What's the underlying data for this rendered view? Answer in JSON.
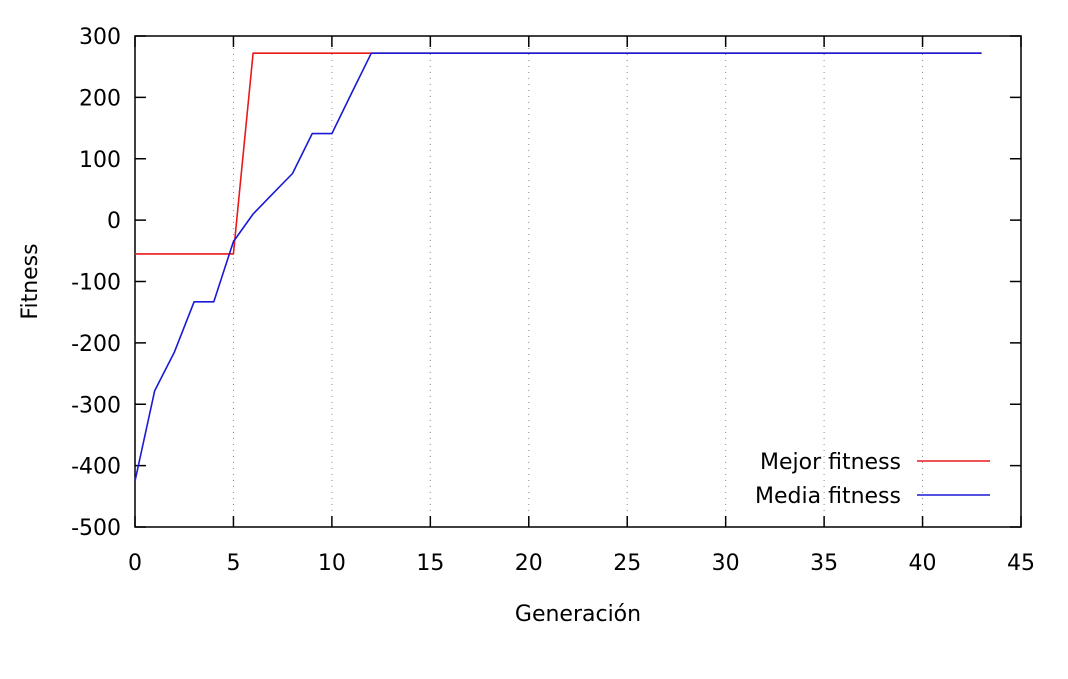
{
  "chart_data": {
    "type": "line",
    "title": "",
    "xlabel": "Generación",
    "ylabel": "Fitness",
    "xlim": [
      0,
      45
    ],
    "ylim": [
      -500,
      300
    ],
    "xticks": [
      0,
      5,
      10,
      15,
      20,
      25,
      30,
      35,
      40,
      45
    ],
    "yticks": [
      -500,
      -400,
      -300,
      -200,
      -100,
      0,
      100,
      200,
      300
    ],
    "grid": "vertical-dotted",
    "legend_position": "bottom-right",
    "series": [
      {
        "name": "Mejor fitness",
        "color": "#e8191b",
        "x": [
          0,
          5,
          6,
          43
        ],
        "y": [
          -55,
          -55,
          272,
          272
        ]
      },
      {
        "name": "Media fitness",
        "color": "#1a1ad6",
        "x": [
          0,
          1,
          2,
          3,
          4,
          5,
          6,
          7,
          8,
          9,
          10,
          11,
          12,
          43
        ],
        "y": [
          -425,
          -278,
          -215,
          -133,
          -133,
          -35,
          10,
          43,
          76,
          141,
          141,
          207,
          272,
          272
        ]
      }
    ]
  }
}
